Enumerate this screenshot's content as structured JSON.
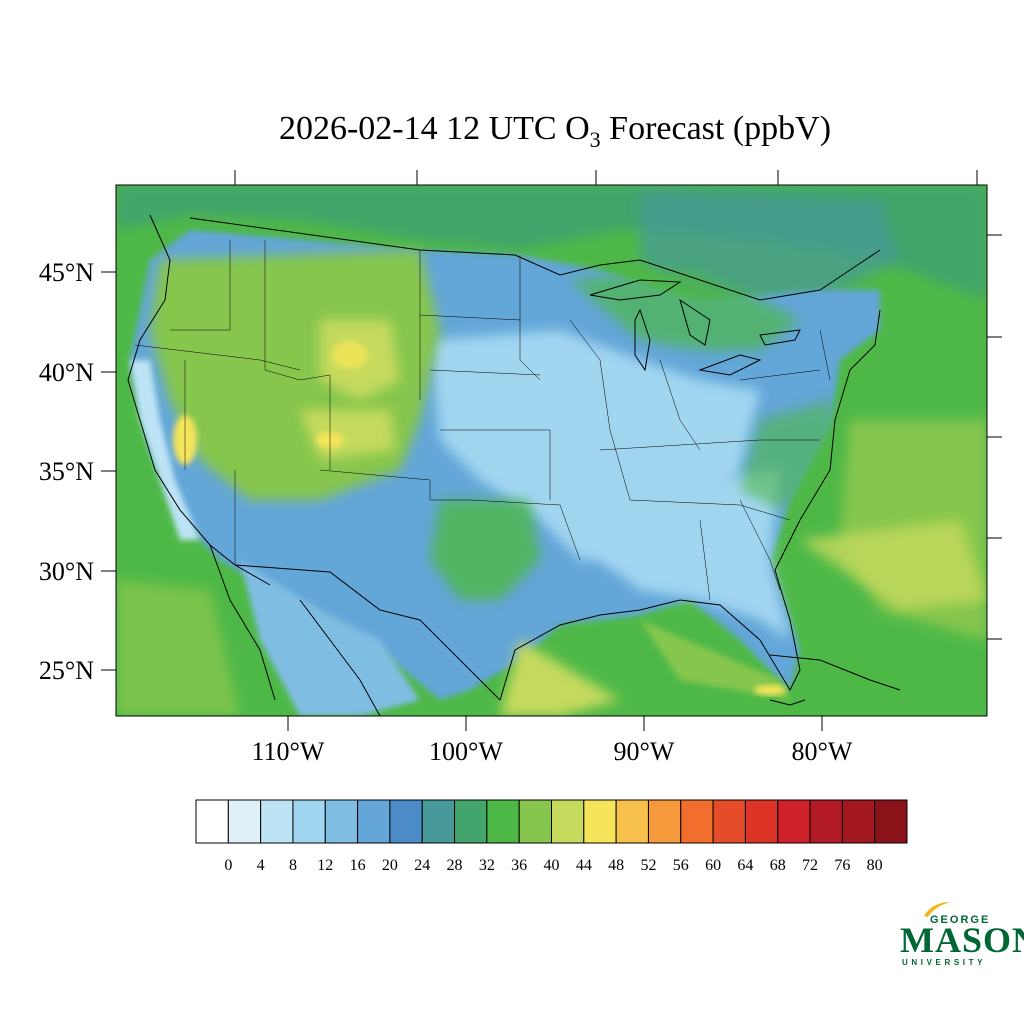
{
  "title": {
    "prefix": "2026-02-14 12 UTC O",
    "subscript": "3",
    "suffix": " Forecast (ppbV)"
  },
  "map": {
    "type": "filled-contour map",
    "region": "Contiguous United States",
    "variable": "O3",
    "units": "ppbV",
    "longitude_labels": [
      "110°W",
      "100°W",
      "90°W",
      "80°W"
    ],
    "latitude_labels": [
      "45°N",
      "40°N",
      "35°N",
      "30°N",
      "25°N"
    ],
    "features": [
      "coastlines",
      "state boundaries",
      "country borders"
    ],
    "dominant_levels": {
      "ocean_pacific": "32–36",
      "ocean_atlantic": "32–44",
      "gulf_of_mexico": "36–44",
      "central_and_southeast_us": "8–24",
      "mountain_west": "36–48",
      "canada_north": "28–36"
    }
  },
  "colorbar": {
    "levels": [
      "0",
      "4",
      "8",
      "12",
      "16",
      "20",
      "24",
      "28",
      "32",
      "36",
      "40",
      "44",
      "48",
      "52",
      "56",
      "60",
      "64",
      "68",
      "72",
      "76",
      "80"
    ],
    "colors": [
      "#ffffff",
      "#dff0f9",
      "#bde4f5",
      "#a1d6f1",
      "#80bde3",
      "#64a6d8",
      "#4b8bc8",
      "#489a9a",
      "#43a56b",
      "#4eb847",
      "#86c64e",
      "#c6da5d",
      "#f6e55a",
      "#f7bf4b",
      "#f6993d",
      "#f26e2d",
      "#e54c29",
      "#dd3428",
      "#cf2129",
      "#b21b25",
      "#a3181f",
      "#8a131a"
    ]
  },
  "logo": {
    "line1": "GEORGE",
    "line2": "MASON",
    "line3": "UNIVERSITY",
    "color": "#006633",
    "accent": "#f2b51c"
  }
}
